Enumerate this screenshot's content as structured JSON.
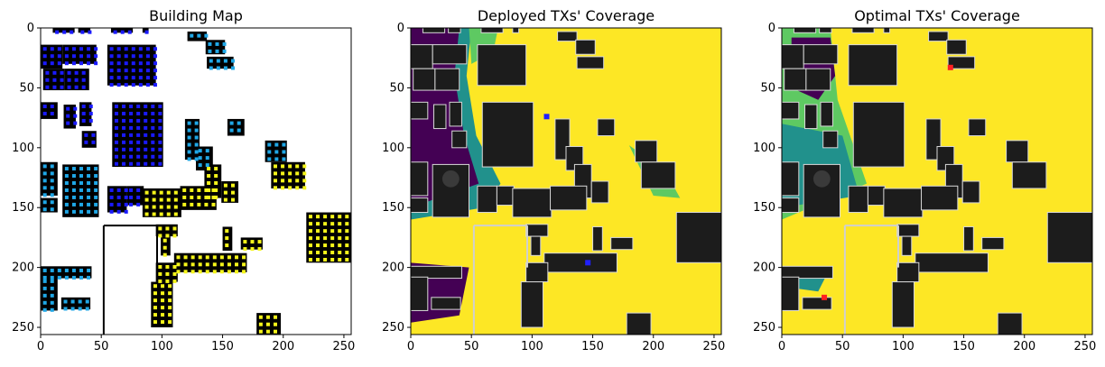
{
  "figure": {
    "titles": [
      "Building Map",
      "Deployed TXs' Coverage",
      "Optimal TXs' Coverage"
    ]
  },
  "chart_data": [
    {
      "type": "heatmap",
      "title": "Building Map",
      "xlabel": "",
      "ylabel": "",
      "xlim": [
        0,
        256
      ],
      "ylim": [
        256,
        0
      ],
      "xticks": [
        0,
        50,
        100,
        150,
        200,
        250
      ],
      "yticks": [
        0,
        50,
        100,
        150,
        200,
        250
      ],
      "grid": false,
      "background": "#ffffff",
      "building_color": "#000000",
      "marker_colors": [
        "#1a1aff",
        "#1fa7e6",
        "#f5f51a",
        "#7cfc00"
      ]
    },
    {
      "type": "heatmap",
      "title": "Deployed TXs' Coverage",
      "xlabel": "",
      "ylabel": "",
      "xlim": [
        0,
        256
      ],
      "ylim": [
        256,
        0
      ],
      "xticks": [
        0,
        50,
        100,
        150,
        200,
        250
      ],
      "yticks": [
        0,
        50,
        100,
        150,
        200,
        250
      ],
      "grid": false,
      "colormap": "viridis",
      "colors": {
        "covered": "#fde725",
        "edge": "#5ec962",
        "mid": "#21918c",
        "uncovered": "#440154",
        "building": "#1c1c1c"
      }
    },
    {
      "type": "heatmap",
      "title": "Optimal TXs' Coverage",
      "xlabel": "",
      "ylabel": "",
      "xlim": [
        0,
        256
      ],
      "ylim": [
        256,
        0
      ],
      "xticks": [
        0,
        50,
        100,
        150,
        200,
        250
      ],
      "yticks": [
        0,
        50,
        100,
        150,
        200,
        250
      ],
      "grid": false,
      "colormap": "viridis",
      "tx_marker_color": "#ff2020",
      "colors": {
        "covered": "#fde725",
        "edge": "#5ec962",
        "mid": "#21918c",
        "uncovered": "#440154",
        "building": "#1c1c1c"
      }
    }
  ]
}
